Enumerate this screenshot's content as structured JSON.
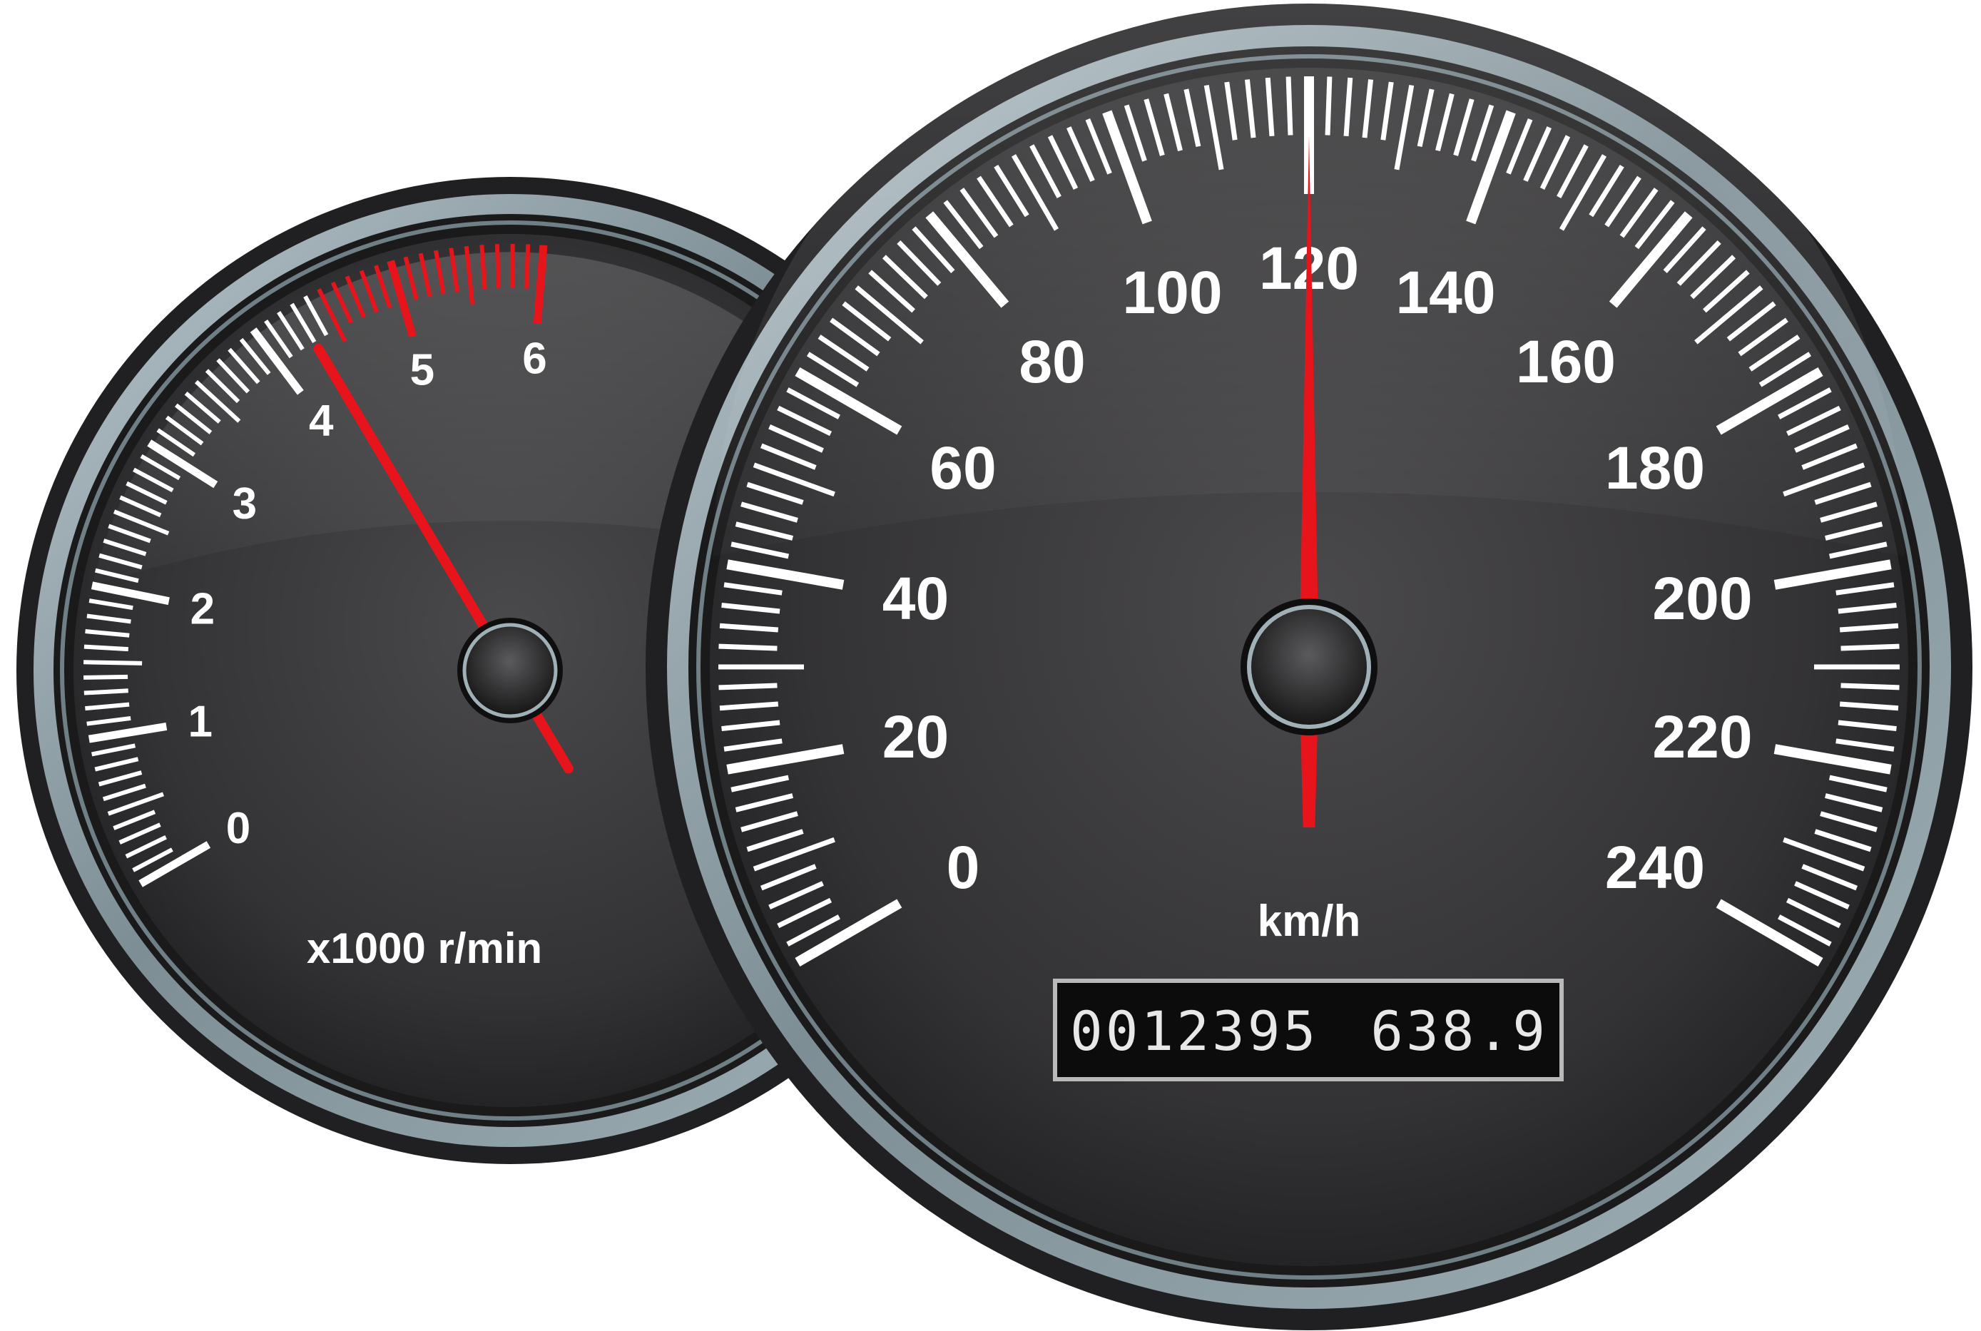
{
  "tachometer": {
    "tick_labels": [
      "0",
      "1",
      "2",
      "3",
      "4",
      "5",
      "6"
    ],
    "unit_label": "x1000 r/min",
    "needle_value": 4.3,
    "redline_start": 4.5,
    "redline_end": 6
  },
  "speedometer": {
    "tick_labels": [
      "0",
      "20",
      "40",
      "60",
      "80",
      "100",
      "120",
      "140",
      "160",
      "180",
      "200",
      "220",
      "240"
    ],
    "unit_label": "km/h",
    "needle_value": 120
  },
  "odometer": {
    "total": "0012395",
    "trip": "638.9"
  },
  "colors": {
    "face": "#3a393a",
    "bezel": "#8e9ea4",
    "needle": "#e8141b",
    "tick": "#ffffff"
  }
}
